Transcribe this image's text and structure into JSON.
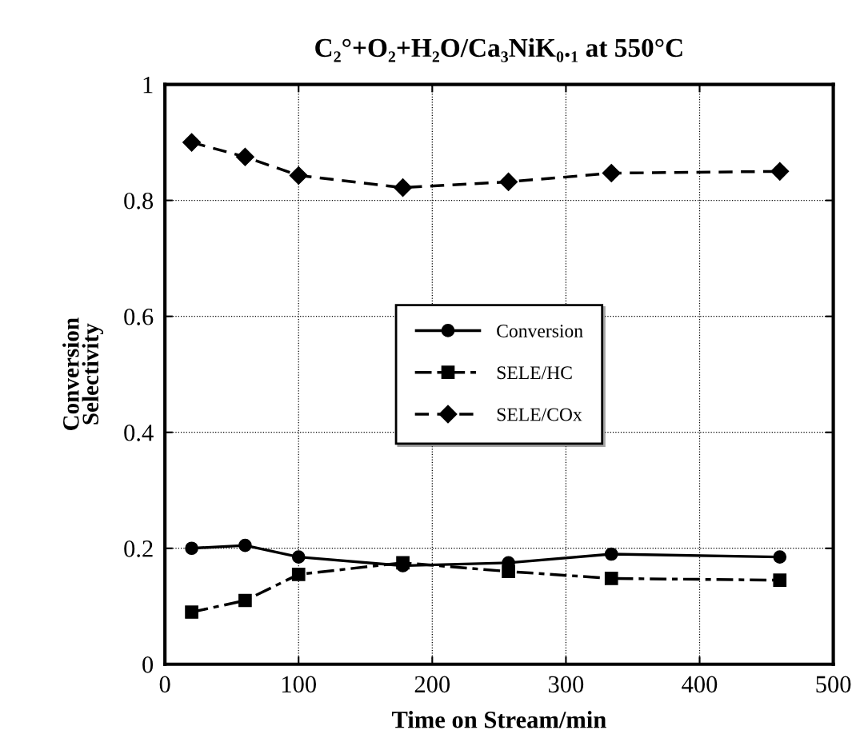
{
  "chart_data": {
    "type": "line",
    "title": "C₂°+O₂+H₂O/Ca₃NiK₀.₁ at 550°C",
    "xlabel": "Time on Stream/min",
    "ylabel": "Conversion\nSelectivity",
    "xlim": [
      0,
      500
    ],
    "xticks": [
      0,
      100,
      200,
      300,
      400,
      500
    ],
    "ylim": [
      0,
      1
    ],
    "yticks": [
      0,
      0.2,
      0.4,
      0.6,
      0.8,
      1
    ],
    "grid": true,
    "legend": "center",
    "series": [
      {
        "name": "Conversion",
        "color": "#000000",
        "marker": "circle",
        "line_style": "solid",
        "x": [
          20,
          60,
          100,
          178,
          257,
          334,
          460
        ],
        "values": [
          0.2,
          0.205,
          0.185,
          0.17,
          0.175,
          0.19,
          0.185
        ]
      },
      {
        "name": "SELE/HC",
        "color": "#000000",
        "marker": "square",
        "line_style": "dashdot",
        "x": [
          20,
          60,
          100,
          178,
          257,
          334,
          460
        ],
        "values": [
          0.09,
          0.11,
          0.155,
          0.175,
          0.16,
          0.148,
          0.145
        ]
      },
      {
        "name": "SELE/COx",
        "color": "#000000",
        "marker": "diamond",
        "line_style": "dashed",
        "x": [
          20,
          60,
          100,
          178,
          257,
          334,
          460
        ],
        "values": [
          0.9,
          0.875,
          0.843,
          0.822,
          0.832,
          0.847,
          0.85
        ]
      }
    ]
  }
}
